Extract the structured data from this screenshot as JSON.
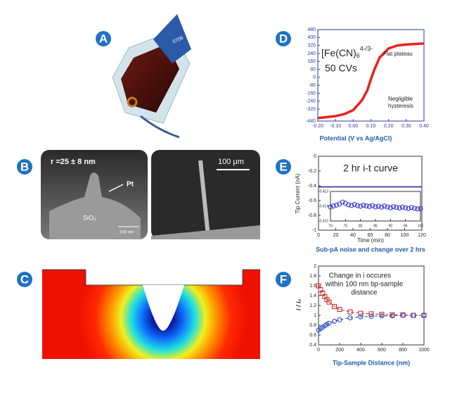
{
  "panels": {
    "labels": [
      "A",
      "B",
      "C",
      "D",
      "E",
      "F"
    ],
    "a": {
      "tag": "0706"
    },
    "b": {
      "radius": "r =25 ± 8 nm",
      "pt": "Pt",
      "sio2": "SiO₂",
      "scale_left": "200 nm",
      "scale_right": "100 μm"
    }
  },
  "chart_data": [
    {
      "type": "line",
      "xlabel": "Potential (V vs Ag/AgCl)",
      "species": "[Fe(CN)",
      "species_sub": "6",
      "species_sup": "4-/3-",
      "annotations": [
        "50 CVs",
        "Flat plateau",
        "Negligible",
        "hysteresis"
      ],
      "x": [
        -0.2,
        -0.15,
        -0.1,
        -0.05,
        0,
        0.05,
        0.08,
        0.1,
        0.12,
        0.15,
        0.2,
        0.25,
        0.3,
        0.35,
        0.4
      ],
      "values": [
        -410,
        -400,
        -390,
        -370,
        -330,
        -230,
        -130,
        -20,
        80,
        200,
        290,
        320,
        330,
        335,
        340
      ],
      "color": "#e8211b",
      "xlim": [
        -0.2,
        0.4
      ],
      "xticks": [
        {
          "value": -0.2,
          "label": "-0.20"
        },
        {
          "value": -0.1,
          "label": "-0.10"
        },
        {
          "value": 0,
          "label": "0.00"
        },
        {
          "value": 0.1,
          "label": "0.10"
        },
        {
          "value": 0.2,
          "label": "0.20"
        },
        {
          "value": 0.3,
          "label": "0.30"
        },
        {
          "value": 0.4,
          "label": "0.40"
        }
      ],
      "ylim": [
        -440,
        480
      ],
      "yticks": [
        -440,
        -320,
        -240,
        -160,
        -80,
        0,
        80,
        160,
        240,
        320,
        400,
        480
      ]
    },
    {
      "type": "line",
      "title": "2 hr i-t curve",
      "ylabel": "Tip Current (nA)",
      "xlabel": "Time (min)",
      "caption": "Sub-pA noise and change over 2 hrs",
      "x": [
        0,
        30,
        60,
        90,
        120
      ],
      "values": [
        -0.414,
        -0.414,
        -0.414,
        -0.414,
        -0.414
      ],
      "color": "#1a1aa8",
      "xlim": [
        0,
        120
      ],
      "xticks": [
        0,
        20,
        40,
        60,
        80,
        100,
        120
      ],
      "ylim": [
        -1,
        0
      ],
      "yticks": [
        -1,
        -0.8,
        -0.6,
        -0.4,
        -0.2,
        0
      ],
      "inset": {
        "x": [
          70,
          71,
          72,
          73,
          74,
          75,
          76,
          77,
          78,
          79,
          80,
          81,
          82,
          83,
          84,
          85,
          86,
          87,
          88,
          89,
          90,
          91,
          92,
          93,
          94,
          95,
          96,
          97,
          98,
          99,
          100
        ],
        "values": [
          -0.41405,
          -0.41398,
          -0.41392,
          -0.41385,
          -0.41372,
          -0.4138,
          -0.4139,
          -0.41395,
          -0.41388,
          -0.41396,
          -0.414,
          -0.41393,
          -0.41398,
          -0.41402,
          -0.41396,
          -0.41404,
          -0.414,
          -0.41406,
          -0.41399,
          -0.41405,
          -0.4141,
          -0.41403,
          -0.41408,
          -0.41412,
          -0.41406,
          -0.41411,
          -0.41415,
          -0.41409,
          -0.41414,
          -0.41418,
          -0.41416
        ],
        "color": "#2b2bd6",
        "xlim": [
          70,
          100
        ],
        "xticks": [
          70,
          75,
          80,
          85,
          90,
          95,
          100
        ],
        "ylim": [
          -0.415,
          -0.413
        ],
        "yticks": [
          -0.415,
          -0.414,
          -0.413
        ]
      }
    },
    {
      "type": "scatter",
      "ylabel": "i / i₀",
      "xlabel": "Tip-Sample Distance (nm)",
      "annotations": [
        "Change in i occures",
        "within 100 nm tip-sample",
        "distance"
      ],
      "x": [
        0,
        20,
        40,
        60,
        80,
        100,
        150,
        200,
        300,
        400,
        500,
        600,
        700,
        800,
        900,
        1000
      ],
      "series": [
        {
          "color": "#c62020",
          "marker": "square",
          "line_style": "dashed",
          "values": [
            1.6,
            1.52,
            1.45,
            1.38,
            1.32,
            1.27,
            1.18,
            1.12,
            1.07,
            1.04,
            1.03,
            1.02,
            1.01,
            1.01,
            1,
            1
          ]
        },
        {
          "color": "#2040c0",
          "marker": "circle",
          "line_style": "dashed",
          "values": [
            0.7,
            0.73,
            0.76,
            0.79,
            0.82,
            0.84,
            0.88,
            0.91,
            0.95,
            0.97,
            0.98,
            0.99,
            0.99,
            1,
            1,
            1
          ]
        }
      ],
      "xlim": [
        0,
        1000
      ],
      "xticks": [
        0,
        200,
        400,
        600,
        800,
        1000
      ],
      "ylim": [
        0.4,
        2
      ],
      "yticks": [
        0.4,
        0.6,
        0.8,
        1,
        1.2,
        1.4,
        1.6,
        1.8,
        2
      ]
    }
  ]
}
